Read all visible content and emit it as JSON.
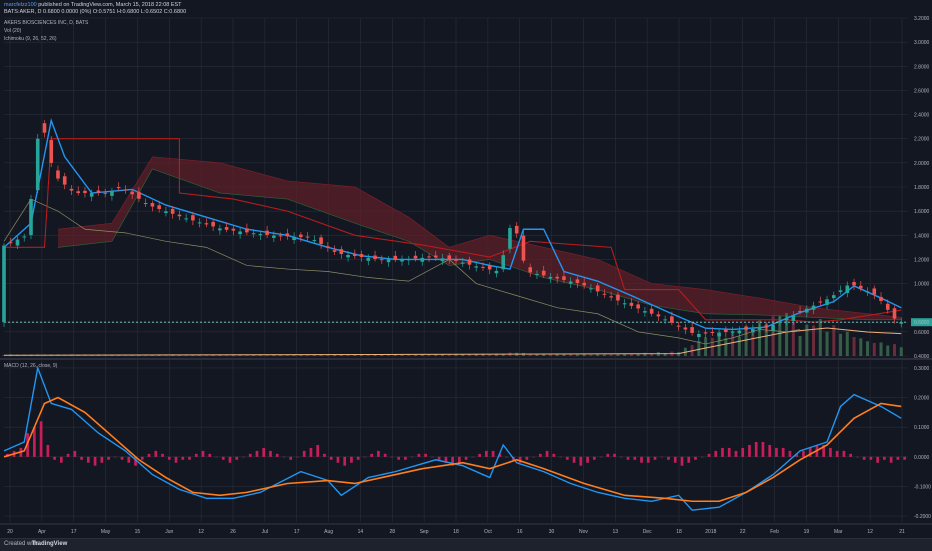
{
  "header": {
    "author": "marcfelzz100",
    "published": "published on TradingView.com, March 15, 2018 22:08 EST",
    "symbol_line": "BATS:AKER, D 0.6800 0.0000 (0%) O:0.5751 H:0.6800 L:0.6502 C:0.6800",
    "title_line": "AKERS BIOSCIENCES INC, D, BATS",
    "vol_label": "Vol (20)",
    "ichimoku_label": "Ichimoku (9, 26, 52, 26)",
    "macd_label": "MACD (12, 26, close, 9)"
  },
  "footer": {
    "created_with": "Created with",
    "brand": "TradingView"
  },
  "colors": {
    "background": "#131722",
    "grid": "#2a2e39",
    "candle_up": "#26a69a",
    "candle_down": "#ef5350",
    "tenkan": "#2196f3",
    "kijun": "#b71c1c",
    "cloud_bear": "#5d1f27",
    "cloud_bull": "#1f4a30",
    "chikou": "#8c8f63",
    "macd": "#2196f3",
    "signal": "#ff7e1f",
    "histogram": "#e91e63",
    "price_line": "#7fd8d0"
  },
  "chart_data": [
    {
      "type": "candlestick",
      "title": "AKERS BIOSCIENCES INC, D, BATS",
      "ylim": [
        0.4,
        3.2
      ],
      "y_tick_labels": [
        "3.2000",
        "3.0000",
        "2.8000",
        "2.6000",
        "2.4000",
        "2.2000",
        "2.0000",
        "1.8000",
        "1.6000",
        "1.4000",
        "1.2000",
        "1.0000",
        "0.6800",
        "0.6000",
        "0.4000"
      ],
      "last_price": 0.68,
      "x_tick_labels": [
        "20",
        "Apr",
        "17",
        "May",
        "15",
        "Jun",
        "12",
        "26",
        "Jul",
        "17",
        "Aug",
        "14",
        "28",
        "Sep",
        "18",
        "Oct",
        "16",
        "30",
        "Nov",
        "13",
        "Dec",
        "18",
        "2018",
        "22",
        "Feb",
        "19",
        "Mar",
        "12",
        "21"
      ],
      "price_path": [
        [
          0,
          1.3
        ],
        [
          4,
          1.4
        ],
        [
          6,
          2.4
        ],
        [
          8,
          1.9
        ],
        [
          11,
          1.75
        ],
        [
          16,
          1.75
        ],
        [
          18,
          1.8
        ],
        [
          22,
          1.65
        ],
        [
          27,
          1.55
        ],
        [
          33,
          1.45
        ],
        [
          40,
          1.4
        ],
        [
          46,
          1.38
        ],
        [
          50,
          1.25
        ],
        [
          56,
          1.2
        ],
        [
          60,
          1.2
        ],
        [
          64,
          1.22
        ],
        [
          67,
          1.2
        ],
        [
          70,
          1.15
        ],
        [
          74,
          1.1
        ],
        [
          76,
          1.55
        ],
        [
          78,
          1.1
        ],
        [
          82,
          1.05
        ],
        [
          86,
          1.0
        ],
        [
          92,
          0.85
        ],
        [
          98,
          0.72
        ],
        [
          103,
          0.58
        ],
        [
          108,
          0.6
        ],
        [
          114,
          0.64
        ],
        [
          118,
          0.75
        ],
        [
          123,
          0.88
        ],
        [
          126,
          1.0
        ],
        [
          130,
          0.9
        ],
        [
          133,
          0.68
        ]
      ],
      "tenkan_path": [
        [
          0,
          1.3
        ],
        [
          4,
          1.5
        ],
        [
          7,
          2.35
        ],
        [
          9,
          2.05
        ],
        [
          13,
          1.75
        ],
        [
          19,
          1.78
        ],
        [
          24,
          1.65
        ],
        [
          30,
          1.55
        ],
        [
          36,
          1.45
        ],
        [
          42,
          1.4
        ],
        [
          48,
          1.3
        ],
        [
          53,
          1.23
        ],
        [
          58,
          1.2
        ],
        [
          63,
          1.2
        ],
        [
          68,
          1.2
        ],
        [
          72,
          1.15
        ],
        [
          75,
          1.12
        ],
        [
          77,
          1.45
        ],
        [
          80,
          1.45
        ],
        [
          83,
          1.1
        ],
        [
          88,
          1.02
        ],
        [
          93,
          0.9
        ],
        [
          99,
          0.75
        ],
        [
          104,
          0.63
        ],
        [
          108,
          0.62
        ],
        [
          113,
          0.64
        ],
        [
          118,
          0.76
        ],
        [
          123,
          0.85
        ],
        [
          126,
          0.98
        ],
        [
          130,
          0.88
        ],
        [
          133,
          0.8
        ]
      ],
      "kijun_path": [
        [
          0,
          1.3
        ],
        [
          6,
          1.3
        ],
        [
          7,
          2.2
        ],
        [
          26,
          2.2
        ],
        [
          26,
          1.75
        ],
        [
          34,
          1.7
        ],
        [
          42,
          1.6
        ],
        [
          52,
          1.4
        ],
        [
          62,
          1.32
        ],
        [
          72,
          1.22
        ],
        [
          78,
          1.35
        ],
        [
          90,
          1.3
        ],
        [
          92,
          0.95
        ],
        [
          100,
          0.95
        ],
        [
          104,
          0.7
        ],
        [
          116,
          0.7
        ],
        [
          120,
          0.68
        ],
        [
          124,
          0.7
        ],
        [
          133,
          0.78
        ]
      ],
      "chikou_path": [
        [
          0,
          1.35
        ],
        [
          4,
          1.7
        ],
        [
          8,
          1.6
        ],
        [
          12,
          1.45
        ],
        [
          18,
          1.42
        ],
        [
          24,
          1.35
        ],
        [
          30,
          1.3
        ],
        [
          36,
          1.15
        ],
        [
          42,
          1.12
        ],
        [
          48,
          1.1
        ],
        [
          54,
          1.05
        ],
        [
          60,
          1.02
        ],
        [
          66,
          1.2
        ],
        [
          70,
          1.0
        ],
        [
          76,
          0.9
        ],
        [
          82,
          0.8
        ],
        [
          88,
          0.75
        ],
        [
          94,
          0.6
        ],
        [
          100,
          0.55
        ],
        [
          104,
          0.5
        ],
        [
          108,
          0.55
        ],
        [
          112,
          0.62
        ],
        [
          116,
          0.6
        ],
        [
          118,
          0.62
        ]
      ],
      "cloud_a": [
        [
          8,
          1.45
        ],
        [
          16,
          1.5
        ],
        [
          22,
          2.05
        ],
        [
          32,
          2.0
        ],
        [
          42,
          1.85
        ],
        [
          52,
          1.8
        ],
        [
          60,
          1.55
        ],
        [
          66,
          1.3
        ],
        [
          72,
          1.4
        ],
        [
          80,
          1.3
        ],
        [
          88,
          1.2
        ],
        [
          96,
          1.0
        ],
        [
          104,
          0.95
        ],
        [
          112,
          0.88
        ],
        [
          120,
          0.8
        ],
        [
          128,
          0.75
        ],
        [
          133,
          0.72
        ]
      ],
      "cloud_b": [
        [
          8,
          1.3
        ],
        [
          16,
          1.35
        ],
        [
          22,
          1.95
        ],
        [
          32,
          1.75
        ],
        [
          42,
          1.7
        ],
        [
          52,
          1.5
        ],
        [
          60,
          1.35
        ],
        [
          66,
          1.15
        ],
        [
          72,
          1.2
        ],
        [
          80,
          1.05
        ],
        [
          88,
          0.95
        ],
        [
          96,
          0.82
        ],
        [
          104,
          0.75
        ],
        [
          112,
          0.74
        ],
        [
          120,
          0.72
        ],
        [
          128,
          0.7
        ],
        [
          133,
          0.7
        ]
      ],
      "volume_path": [
        [
          0,
          0.02
        ],
        [
          20,
          0.02
        ],
        [
          40,
          0.02
        ],
        [
          60,
          0.02
        ],
        [
          73,
          0.03
        ],
        [
          76,
          0.05
        ],
        [
          78,
          0.03
        ],
        [
          90,
          0.02
        ],
        [
          100,
          0.06
        ],
        [
          104,
          0.25
        ],
        [
          108,
          0.3
        ],
        [
          112,
          0.45
        ],
        [
          116,
          0.6
        ],
        [
          118,
          0.3
        ],
        [
          120,
          0.5
        ],
        [
          124,
          0.35
        ],
        [
          128,
          0.2
        ],
        [
          132,
          0.15
        ]
      ],
      "volume_ma": [
        [
          0,
          0.01
        ],
        [
          60,
          0.02
        ],
        [
          100,
          0.03
        ],
        [
          104,
          0.1
        ],
        [
          110,
          0.2
        ],
        [
          116,
          0.3
        ],
        [
          122,
          0.35
        ],
        [
          128,
          0.3
        ],
        [
          133,
          0.28
        ]
      ]
    },
    {
      "type": "line",
      "title": "MACD (12, 26, close, 9)",
      "ylim": [
        -0.22,
        0.32
      ],
      "y_tick_labels": [
        "0.3000",
        "0.2000",
        "0.1000",
        "0.0000",
        "-0.1000",
        "-0.2000"
      ],
      "series": [
        {
          "name": "MACD",
          "values": [
            [
              0,
              0.02
            ],
            [
              3,
              0.05
            ],
            [
              5,
              0.3
            ],
            [
              7,
              0.18
            ],
            [
              10,
              0.16
            ],
            [
              14,
              0.08
            ],
            [
              18,
              0.02
            ],
            [
              22,
              -0.06
            ],
            [
              26,
              -0.11
            ],
            [
              30,
              -0.14
            ],
            [
              34,
              -0.14
            ],
            [
              38,
              -0.12
            ],
            [
              44,
              -0.05
            ],
            [
              48,
              -0.08
            ],
            [
              50,
              -0.13
            ],
            [
              54,
              -0.07
            ],
            [
              58,
              -0.05
            ],
            [
              64,
              -0.01
            ],
            [
              68,
              -0.03
            ],
            [
              72,
              -0.07
            ],
            [
              74,
              0.04
            ],
            [
              76,
              -0.02
            ],
            [
              80,
              -0.05
            ],
            [
              84,
              -0.09
            ],
            [
              88,
              -0.12
            ],
            [
              92,
              -0.14
            ],
            [
              96,
              -0.15
            ],
            [
              100,
              -0.13
            ],
            [
              102,
              -0.18
            ],
            [
              106,
              -0.17
            ],
            [
              110,
              -0.12
            ],
            [
              114,
              -0.06
            ],
            [
              118,
              0.02
            ],
            [
              122,
              0.05
            ],
            [
              124,
              0.17
            ],
            [
              126,
              0.21
            ],
            [
              130,
              0.17
            ],
            [
              133,
              0.13
            ]
          ]
        },
        {
          "name": "Signal",
          "values": [
            [
              0,
              0.0
            ],
            [
              3,
              0.02
            ],
            [
              6,
              0.18
            ],
            [
              8,
              0.2
            ],
            [
              12,
              0.15
            ],
            [
              16,
              0.07
            ],
            [
              20,
              -0.01
            ],
            [
              24,
              -0.07
            ],
            [
              28,
              -0.12
            ],
            [
              32,
              -0.13
            ],
            [
              36,
              -0.12
            ],
            [
              42,
              -0.09
            ],
            [
              48,
              -0.08
            ],
            [
              52,
              -0.09
            ],
            [
              56,
              -0.07
            ],
            [
              62,
              -0.04
            ],
            [
              68,
              -0.02
            ],
            [
              72,
              -0.04
            ],
            [
              76,
              -0.01
            ],
            [
              80,
              -0.04
            ],
            [
              86,
              -0.09
            ],
            [
              92,
              -0.13
            ],
            [
              98,
              -0.14
            ],
            [
              102,
              -0.15
            ],
            [
              106,
              -0.15
            ],
            [
              110,
              -0.12
            ],
            [
              114,
              -0.07
            ],
            [
              118,
              -0.01
            ],
            [
              122,
              0.04
            ],
            [
              126,
              0.13
            ],
            [
              130,
              0.18
            ],
            [
              133,
              0.17
            ]
          ]
        }
      ],
      "histogram": [
        0.01,
        0.02,
        0.03,
        0.08,
        0.1,
        0.12,
        0.04,
        -0.01,
        -0.02,
        0.01,
        0.02,
        -0.01,
        -0.02,
        -0.03,
        -0.02,
        -0.01,
        0.0,
        -0.01,
        -0.02,
        -0.03,
        -0.01,
        0.01,
        0.02,
        0.01,
        -0.01,
        -0.02,
        -0.01,
        -0.01,
        0.01,
        0.02,
        0.01,
        0.0,
        -0.01,
        -0.02,
        -0.01,
        0.0,
        0.01,
        0.02,
        0.03,
        0.02,
        0.01,
        0.0,
        -0.01,
        0.0,
        0.02,
        0.03,
        0.04,
        0.01,
        -0.01,
        -0.02,
        -0.03,
        -0.02,
        -0.01,
        0.0,
        0.01,
        0.02,
        0.01,
        0.0,
        -0.01,
        -0.01,
        0.0,
        0.01,
        0.01,
        0.0,
        -0.01,
        -0.02,
        -0.03,
        -0.02,
        -0.01,
        0.0,
        0.01,
        0.02,
        0.02,
        0.01,
        0.0,
        -0.01,
        -0.02,
        -0.01,
        0.0,
        0.01,
        0.02,
        0.01,
        0.0,
        -0.01,
        -0.02,
        -0.03,
        -0.02,
        -0.01,
        0.0,
        0.01,
        0.01,
        0.0,
        -0.01,
        -0.01,
        -0.02,
        -0.02,
        -0.01,
        0.0,
        -0.01,
        -0.02,
        -0.03,
        -0.02,
        -0.01,
        0.0,
        0.01,
        0.02,
        0.03,
        0.03,
        0.02,
        0.03,
        0.04,
        0.05,
        0.05,
        0.04,
        0.03,
        0.03,
        0.02,
        0.01,
        0.02,
        0.03,
        0.04,
        0.04,
        0.03,
        0.02,
        0.02,
        0.01,
        0.0,
        -0.01,
        -0.01,
        -0.02,
        -0.01,
        -0.02,
        -0.01,
        -0.01
      ]
    }
  ]
}
